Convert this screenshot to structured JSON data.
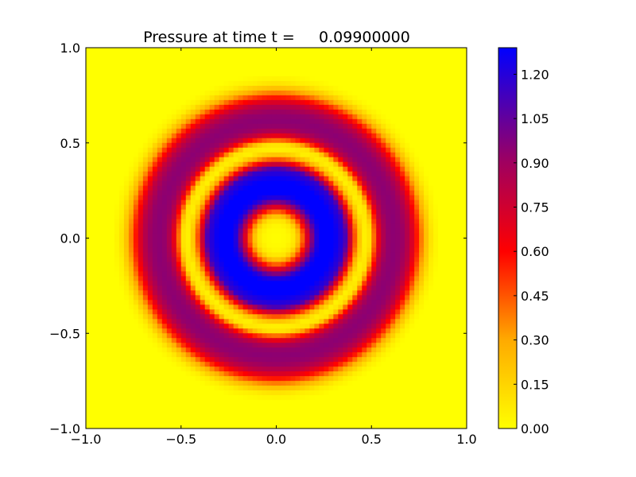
{
  "chart_data": [
    {
      "type": "heatmap",
      "title": "Pressure at time t =     0.09900000",
      "xlabel": "",
      "ylabel": "",
      "xlim": [
        -1.0,
        1.0
      ],
      "ylim": [
        -1.0,
        1.0
      ],
      "x_ticks": [
        -1.0,
        -0.5,
        0.0,
        0.5,
        1.0
      ],
      "x_tick_labels": [
        "−1.0",
        "−0.5",
        "0.0",
        "0.5",
        "1.0"
      ],
      "y_ticks": [
        1.0,
        0.5,
        0.0,
        -0.5,
        -1.0
      ],
      "y_tick_labels": [
        "1.0",
        "0.5",
        "0.0",
        "−0.5",
        "−1.0"
      ],
      "grid": false,
      "grid_resolution": 80,
      "field": {
        "kind": "radial",
        "profile_radius": [
          0.0,
          0.06,
          0.1,
          0.14,
          0.18,
          0.21,
          0.24,
          0.3,
          0.36,
          0.4,
          0.43,
          0.46,
          0.49,
          0.52,
          0.55,
          0.58,
          0.62,
          0.66,
          0.7,
          0.74,
          0.78,
          0.82,
          0.86,
          1.5
        ],
        "profile_value": [
          0.0,
          0.02,
          0.1,
          0.45,
          0.9,
          1.2,
          1.3,
          1.3,
          1.15,
          0.6,
          0.25,
          0.05,
          0.1,
          0.5,
          0.8,
          0.92,
          0.95,
          0.92,
          0.8,
          0.55,
          0.25,
          0.06,
          0.0,
          0.0
        ]
      },
      "colorbar": {
        "vmin": 0.0,
        "vmax": 1.29,
        "ticks": [
          0.0,
          0.15,
          0.3,
          0.45,
          0.6,
          0.75,
          0.9,
          1.05,
          1.2
        ],
        "tick_labels": [
          "0.00",
          "0.15",
          "0.30",
          "0.45",
          "0.60",
          "0.75",
          "0.90",
          "1.05",
          "1.20"
        ],
        "colormap": [
          {
            "value": 0.0,
            "color": "#ffff00"
          },
          {
            "value": 0.3,
            "color": "#ffaa00"
          },
          {
            "value": 0.6,
            "color": "#ff0000"
          },
          {
            "value": 0.9,
            "color": "#a0005f"
          },
          {
            "value": 1.29,
            "color": "#0000ff"
          }
        ]
      }
    }
  ]
}
